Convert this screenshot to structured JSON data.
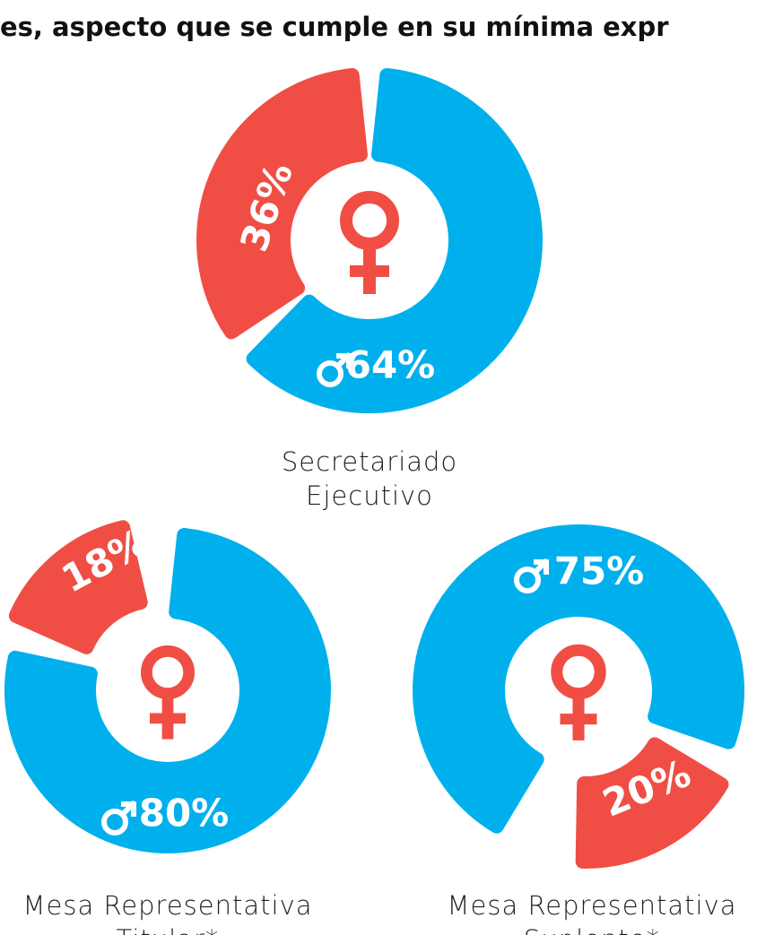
{
  "header": {
    "title": "es, aspecto que se cumple en su mínima expr"
  },
  "chart_data": [
    {
      "type": "pie",
      "caption": [
        "Secretariado",
        "Ejecutivo"
      ],
      "values": [
        64,
        36
      ],
      "value_labels": [
        "64%",
        "36%"
      ],
      "colors": [
        "#00b0ec",
        "#f04e45"
      ]
    },
    {
      "type": "pie",
      "caption": [
        "Mesa Representativa",
        "Titular*"
      ],
      "values": [
        80,
        18
      ],
      "value_labels": [
        "80%",
        "18%"
      ],
      "colors": [
        "#00b0ec",
        "#f04e45"
      ]
    },
    {
      "type": "pie",
      "caption": [
        "Mesa Representativa",
        "Suplente*"
      ],
      "values": [
        75,
        20
      ],
      "value_labels": [
        "75%",
        "20%"
      ],
      "colors": [
        "#00b0ec",
        "#f04e45"
      ]
    }
  ]
}
